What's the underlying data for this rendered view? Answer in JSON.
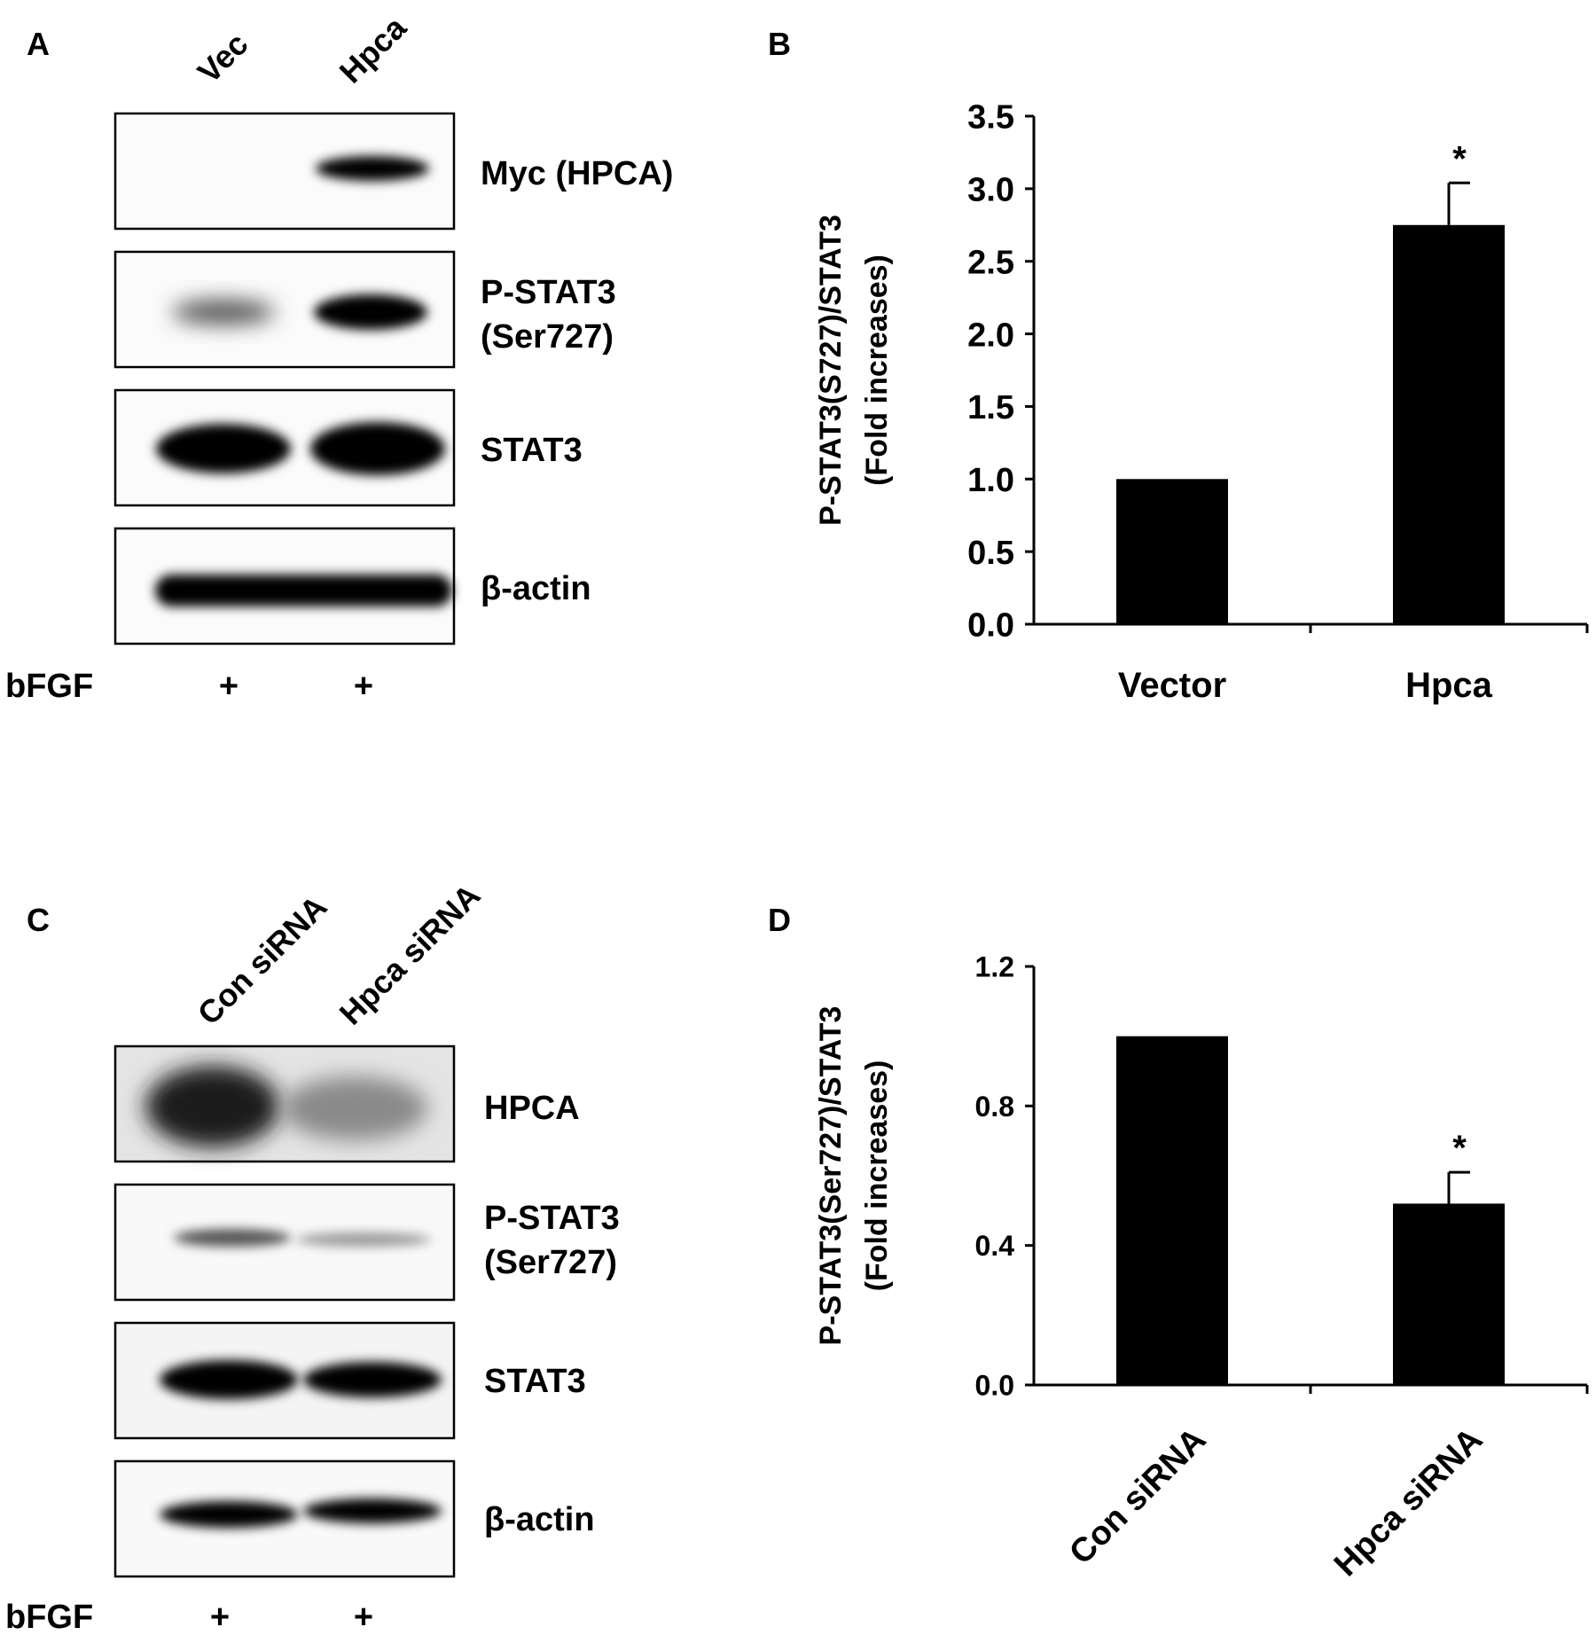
{
  "panels": {
    "A": {
      "letter": "A",
      "lanes": [
        "Vec",
        "Hpca"
      ],
      "blots": [
        {
          "label": "Myc (HPCA)",
          "lane_intensity": [
            0,
            0.9
          ]
        },
        {
          "label": "P-STAT3",
          "label2": "(Ser727)",
          "lane_intensity": [
            0.35,
            0.85
          ]
        },
        {
          "label": "STAT3",
          "lane_intensity": [
            1,
            1
          ]
        },
        {
          "label": "β-actin",
          "lane_intensity": [
            0.95,
            1
          ]
        }
      ],
      "treatment_label": "bFGF",
      "treatment_marks": [
        "+",
        "+"
      ]
    },
    "C": {
      "letter": "C",
      "lanes": [
        "Con siRNA",
        "Hpca siRNA"
      ],
      "blots": [
        {
          "label": "HPCA",
          "lane_intensity": [
            0.9,
            0.35
          ]
        },
        {
          "label": "P-STAT3",
          "label2": "(Ser727)",
          "lane_intensity": [
            0.4,
            0.2
          ]
        },
        {
          "label": "STAT3",
          "lane_intensity": [
            1,
            0.95
          ]
        },
        {
          "label": "β-actin",
          "lane_intensity": [
            0.95,
            0.95
          ]
        }
      ],
      "treatment_label": "bFGF",
      "treatment_marks": [
        "+",
        "+"
      ]
    }
  },
  "chart_data": [
    {
      "panel": "B",
      "type": "bar",
      "categories": [
        "Vector",
        "Hpca"
      ],
      "values": [
        1.0,
        2.75
      ],
      "errors": [
        0.0,
        0.29
      ],
      "significance": [
        "",
        "*"
      ],
      "ylabel_line1": "P-STAT3(S727)/STAT3",
      "ylabel_line2": "(Fold increases)",
      "ylim": [
        0,
        3.5
      ],
      "yticks": [
        "0.0",
        "0.5",
        "1.0",
        "1.5",
        "2.0",
        "2.5",
        "3.0",
        "3.5"
      ],
      "bar_color": "#000000",
      "grid": false
    },
    {
      "panel": "D",
      "type": "bar",
      "categories": [
        "Con siRNA",
        "Hpca siRNA"
      ],
      "values": [
        1.0,
        0.52
      ],
      "errors": [
        0.0,
        0.09
      ],
      "significance": [
        "",
        "*"
      ],
      "ylabel_line1": "P-STAT3(Ser727)/STAT3",
      "ylabel_line2": "(Fold increases)",
      "ylim": [
        0,
        1.2
      ],
      "yticks": [
        "0.0",
        "0.4",
        "0.8",
        "1.2"
      ],
      "bar_color": "#000000",
      "grid": false
    }
  ],
  "panel_letters": {
    "B": "B",
    "D": "D"
  }
}
